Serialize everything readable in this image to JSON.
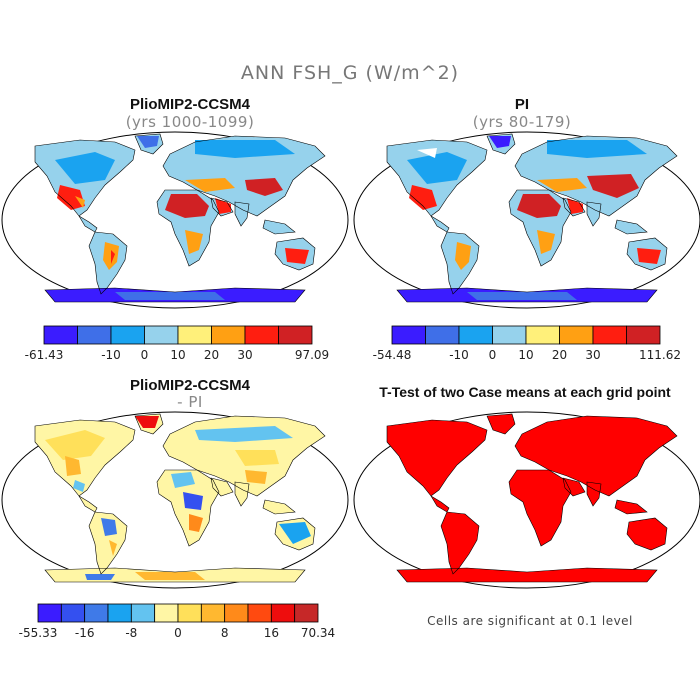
{
  "figure": {
    "title": "ANN FSH_G (W/m^2)",
    "footnote": "Cells are significant at 0.1 level"
  },
  "panels": [
    {
      "id": "case",
      "title": "PlioMIP2-CCSM4",
      "subtitle": "(yrs 1000-1099)"
    },
    {
      "id": "control",
      "title": "PI",
      "subtitle": "(yrs 80-179)"
    },
    {
      "id": "diff",
      "title": "PlioMIP2-CCSM4",
      "subtitle": "- PI"
    },
    {
      "id": "ttest",
      "title": "T-Test of two Case means at each grid point",
      "subtitle": ""
    }
  ],
  "colorbars": {
    "case": {
      "colors": [
        "#3b1cff",
        "#3f6fe8",
        "#1aa3f0",
        "#96d2ec",
        "#fff07a",
        "#ffa013",
        "#ff1e10",
        "#d02124"
      ],
      "labels": [
        "-61.43",
        "-10",
        "0",
        "10",
        "20",
        "30",
        "97.09"
      ],
      "label_bounds": [
        0,
        2,
        3,
        4,
        5,
        6,
        8
      ]
    },
    "control": {
      "colors": [
        "#3b1cff",
        "#3f6fe8",
        "#1aa3f0",
        "#96d2ec",
        "#fff07a",
        "#ffa013",
        "#ff1e10",
        "#d02124"
      ],
      "labels": [
        "-54.48",
        "-10",
        "0",
        "10",
        "20",
        "30",
        "111.62"
      ],
      "label_bounds": [
        0,
        2,
        3,
        4,
        5,
        6,
        8
      ]
    },
    "diff": {
      "colors": [
        "#3b1cff",
        "#3450f0",
        "#3f7ae8",
        "#1aa3f0",
        "#63c3f0",
        "#fff6a5",
        "#ffe05a",
        "#ffb830",
        "#ff8a1a",
        "#ff4a10",
        "#ee0d0d",
        "#c62828"
      ],
      "labels": [
        "-55.33",
        "-16",
        "-8",
        "0",
        "8",
        "16",
        "70.34"
      ],
      "label_bounds": [
        0,
        2,
        4,
        6,
        8,
        10,
        12
      ]
    }
  }
}
